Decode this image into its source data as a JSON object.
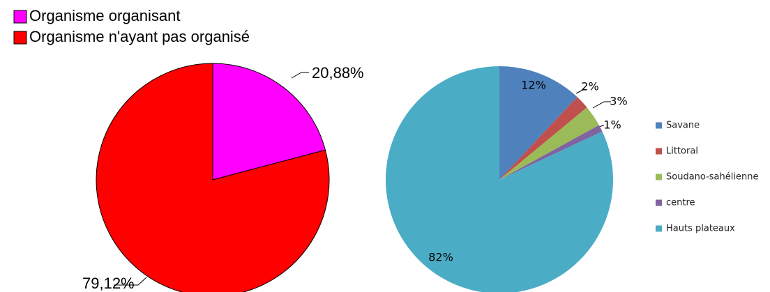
{
  "chart_data": [
    {
      "type": "pie",
      "categories": [
        "Organisme organisant",
        "Organisme n'ayant pas organisé"
      ],
      "values": [
        20.88,
        79.12
      ],
      "value_labels": [
        "20,88%",
        "79,12%"
      ],
      "colors": [
        "#ff00ff",
        "#ff0000"
      ],
      "legend": "top-left"
    },
    {
      "type": "pie",
      "categories": [
        "Savane",
        "Littoral",
        "Soudano-sahélienne",
        "centre",
        "Hauts plateaux"
      ],
      "values": [
        12,
        2,
        3,
        1,
        82
      ],
      "value_labels": [
        "12%",
        "2%",
        "3%",
        "1%",
        "82%"
      ],
      "colors": [
        "#4f81bd",
        "#c0504d",
        "#9bbb59",
        "#8064a2",
        "#4bacc6"
      ],
      "legend": "right"
    }
  ]
}
